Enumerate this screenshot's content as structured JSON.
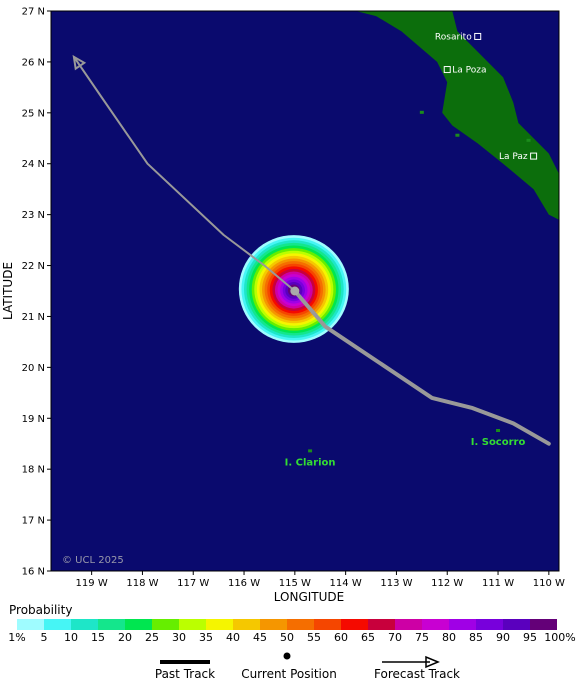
{
  "map": {
    "lat_ticks": [
      "16 N",
      "17 N",
      "18 N",
      "19 N",
      "20 N",
      "21 N",
      "22 N",
      "23 N",
      "24 N",
      "25 N",
      "26 N",
      "27 N"
    ],
    "lon_ticks": [
      "119 W",
      "118 W",
      "117 W",
      "116 W",
      "115 W",
      "114 W",
      "113 W",
      "112 W",
      "111 W",
      "110 W"
    ],
    "xlabel": "LONGITUDE",
    "ylabel": "LATITUDE",
    "lon_range": [
      -119.8,
      -109.8
    ],
    "lat_range": [
      16,
      27
    ],
    "copyright": "© UCL 2025",
    "ocean_color": "#0a0a6e",
    "land_color": "#0c6e0c",
    "track_color": "#999999",
    "places": [
      {
        "name": "Rosarito",
        "lon": -111.4,
        "lat": 26.5
      },
      {
        "name": "La Poza",
        "lon": -112.0,
        "lat": 25.85
      },
      {
        "name": "La Paz",
        "lon": -110.3,
        "lat": 24.15
      }
    ],
    "islands": [
      {
        "name": "I. Clarion",
        "lon": -114.7,
        "lat": 18.35
      },
      {
        "name": "I. Socorro",
        "lon": -111.0,
        "lat": 18.75
      }
    ],
    "current_position": {
      "lon": -115.0,
      "lat": 21.5
    },
    "forecast_track": [
      {
        "lon": -115.0,
        "lat": 21.5
      },
      {
        "lon": -115.6,
        "lat": 22.0
      },
      {
        "lon": -116.4,
        "lat": 22.6
      },
      {
        "lon": -117.9,
        "lat": 24.0
      },
      {
        "lon": -118.8,
        "lat": 25.3
      },
      {
        "lon": -119.35,
        "lat": 26.1
      }
    ],
    "past_track": [
      {
        "lon": -110.0,
        "lat": 18.5
      },
      {
        "lon": -110.7,
        "lat": 18.9
      },
      {
        "lon": -111.5,
        "lat": 19.2
      },
      {
        "lon": -112.3,
        "lat": 19.4
      },
      {
        "lon": -114.4,
        "lat": 20.8
      },
      {
        "lon": -115.0,
        "lat": 21.5
      }
    ]
  },
  "probability": {
    "title": "Probability",
    "labels": [
      "1%",
      "5",
      "10",
      "15",
      "20",
      "25",
      "30",
      "35",
      "40",
      "45",
      "50",
      "55",
      "60",
      "65",
      "70",
      "75",
      "80",
      "85",
      "90",
      "95",
      "100%"
    ],
    "colors": [
      "#9ffcff",
      "#46f5f5",
      "#1ee6c8",
      "#14e68c",
      "#00e650",
      "#66ee00",
      "#bbff00",
      "#f5f500",
      "#f5c800",
      "#f59600",
      "#f56e00",
      "#f54600",
      "#f50a00",
      "#c8003c",
      "#cd00a5",
      "#c800d2",
      "#a000e6",
      "#7800dc",
      "#5a00be",
      "#640078"
    ]
  },
  "legend": {
    "past_track": "Past Track",
    "current_position": "Current Position",
    "forecast_track": "Forecast Track"
  }
}
